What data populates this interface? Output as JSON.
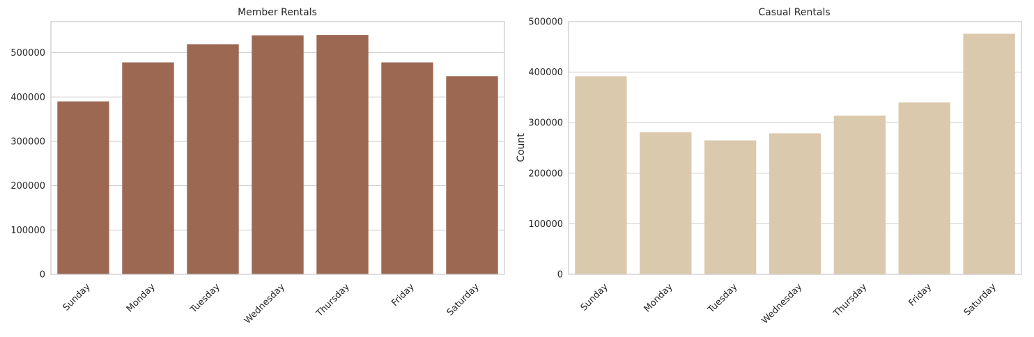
{
  "chart_data": [
    {
      "type": "bar",
      "title": "Member Rentals",
      "xlabel": "",
      "ylabel": "",
      "categories": [
        "Sunday",
        "Monday",
        "Tuesday",
        "Wednesday",
        "Thursday",
        "Friday",
        "Saturday"
      ],
      "values": [
        390000,
        478000,
        519000,
        539000,
        540000,
        478000,
        447000
      ],
      "ylim": [
        0,
        570000
      ],
      "yticks": [
        0,
        100000,
        200000,
        300000,
        400000,
        500000
      ],
      "ytick_labels": [
        "0",
        "100000",
        "200000",
        "300000",
        "400000",
        "500000"
      ],
      "grid": "horizontal",
      "color": "#9c6852"
    },
    {
      "type": "bar",
      "title": "Casual Rentals",
      "xlabel": "",
      "ylabel": "Count",
      "categories": [
        "Sunday",
        "Monday",
        "Tuesday",
        "Wednesday",
        "Thursday",
        "Friday",
        "Saturday"
      ],
      "values": [
        392000,
        281000,
        265000,
        279000,
        314000,
        340000,
        476000
      ],
      "ylim": [
        0,
        500000
      ],
      "yticks": [
        0,
        100000,
        200000,
        300000,
        400000,
        500000
      ],
      "ytick_labels": [
        "0",
        "100000",
        "200000",
        "300000",
        "400000",
        "500000"
      ],
      "grid": "horizontal",
      "color": "#dbc9ae"
    }
  ]
}
